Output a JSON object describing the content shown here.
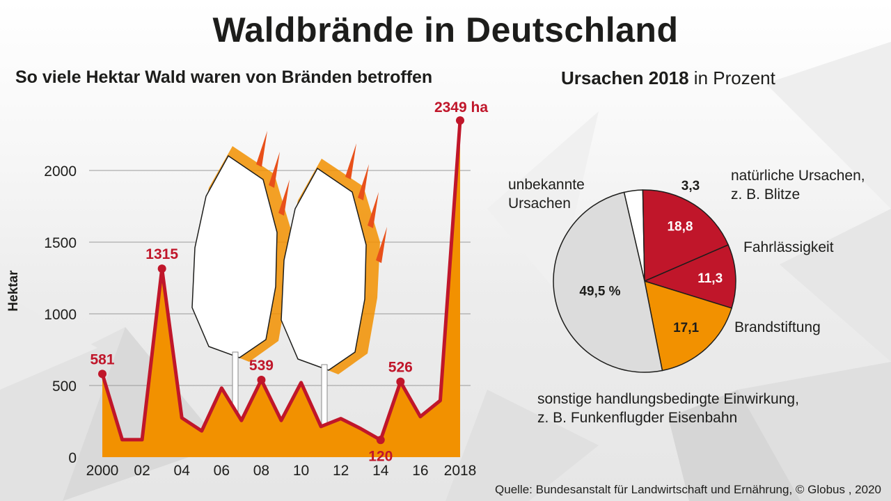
{
  "title": "Waldbrände in Deutschland",
  "line_subtitle": "So viele Hektar Wald waren von Bränden betroffen",
  "pie_subtitle_bold": "Ursachen 2018",
  "pie_subtitle_rest": " in Prozent",
  "source": "Quelle: Bundesanstalt für Landwirtschaft und Ernährung, © Globus , 2020",
  "colors": {
    "line": "#c0162a",
    "area": "#f29100",
    "grey_slice": "#dcdcdc",
    "white_slice": "#ffffff",
    "red_slice": "#c0162a",
    "orange_slice": "#f29100",
    "text": "#1d1d1b",
    "grid": "#9a9a9a"
  },
  "icons": [
    "burning-tree-icon",
    "burning-tree-icon"
  ],
  "chart_data": [
    {
      "type": "area",
      "ylabel": "Hektar",
      "ylim": [
        0,
        2000
      ],
      "yticks": [
        0,
        500,
        1000,
        1500,
        2000
      ],
      "xticks": [
        {
          "x": 2000,
          "label": "2000"
        },
        {
          "x": 2002,
          "label": "02"
        },
        {
          "x": 2004,
          "label": "04"
        },
        {
          "x": 2006,
          "label": "06"
        },
        {
          "x": 2008,
          "label": "08"
        },
        {
          "x": 2010,
          "label": "10"
        },
        {
          "x": 2012,
          "label": "12"
        },
        {
          "x": 2014,
          "label": "14"
        },
        {
          "x": 2016,
          "label": "16"
        },
        {
          "x": 2018,
          "label": "2018"
        }
      ],
      "x": [
        2000,
        2001,
        2002,
        2003,
        2004,
        2005,
        2006,
        2007,
        2008,
        2009,
        2010,
        2011,
        2012,
        2013,
        2014,
        2015,
        2016,
        2017,
        2018
      ],
      "values": [
        581,
        122,
        122,
        1315,
        274,
        183,
        482,
        256,
        539,
        256,
        520,
        214,
        269,
        199,
        120,
        526,
        283,
        395,
        2349
      ],
      "annotations": [
        {
          "x": 2000,
          "label": "581",
          "pos": "above"
        },
        {
          "x": 2003,
          "label": "1315",
          "pos": "above"
        },
        {
          "x": 2008,
          "label": "539",
          "pos": "above"
        },
        {
          "x": 2014,
          "label": "120",
          "pos": "below"
        },
        {
          "x": 2015,
          "label": "526",
          "pos": "above"
        },
        {
          "x": 2018,
          "label": "2349 ha",
          "pos": "above-left"
        }
      ],
      "grid": true
    },
    {
      "type": "pie",
      "slices": [
        {
          "value": 3.3,
          "label": "3,3",
          "color": "#ffffff",
          "caption": "natürliche Ursachen,\nz. B. Blitze"
        },
        {
          "value": 18.8,
          "label": "18,8",
          "color": "#c0162a",
          "caption": "Fahrlässigkeit"
        },
        {
          "value": 11.3,
          "label": "11,3",
          "color": "#c0162a",
          "caption": "Brandstiftung"
        },
        {
          "value": 17.1,
          "label": "17,1",
          "color": "#f29100",
          "caption": "sonstige handlungsbedingte Einwirkung,\nz. B. Funkenflugder Eisenbahn"
        },
        {
          "value": 49.5,
          "label": "49,5 %",
          "color": "#dcdcdc",
          "caption": "unbekannte\nUrsachen"
        }
      ]
    }
  ]
}
